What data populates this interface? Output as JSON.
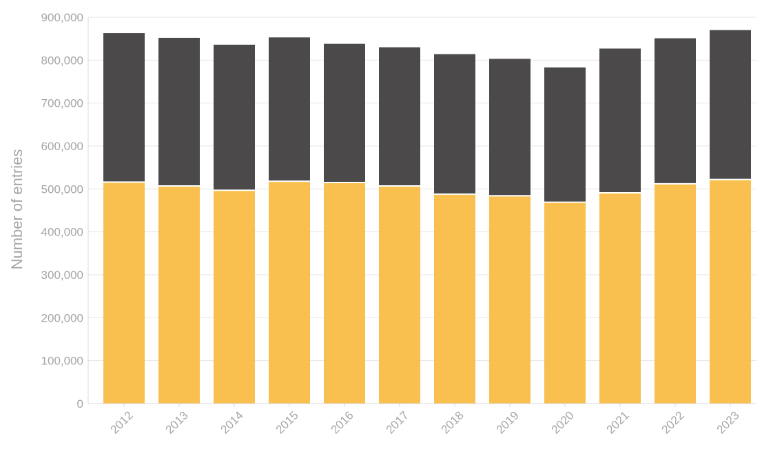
{
  "chart_data": {
    "type": "bar",
    "stacked": true,
    "title": "",
    "xlabel": "",
    "ylabel": "Number of entries",
    "ylim": [
      0,
      900000
    ],
    "yticks": [
      0,
      100000,
      200000,
      300000,
      400000,
      500000,
      600000,
      700000,
      800000,
      900000
    ],
    "ytick_labels": [
      "0",
      "100,000",
      "200,000",
      "300,000",
      "400,000",
      "500,000",
      "600,000",
      "700,000",
      "800,000",
      "900,000"
    ],
    "categories": [
      "2012",
      "2013",
      "2014",
      "2015",
      "2016",
      "2017",
      "2018",
      "2019",
      "2020",
      "2021",
      "2022",
      "2023"
    ],
    "series": [
      {
        "color": "#f9bb42",
        "values": [
          516000,
          507000,
          497000,
          518000,
          515000,
          507000,
          488000,
          484000,
          469000,
          491000,
          512000,
          522000
        ]
      },
      {
        "color": "#454344",
        "values": [
          347000,
          345000,
          339000,
          335000,
          323000,
          323000,
          326000,
          319000,
          314000,
          336000,
          339000,
          348000
        ]
      }
    ],
    "grid": true,
    "legend": "none"
  }
}
